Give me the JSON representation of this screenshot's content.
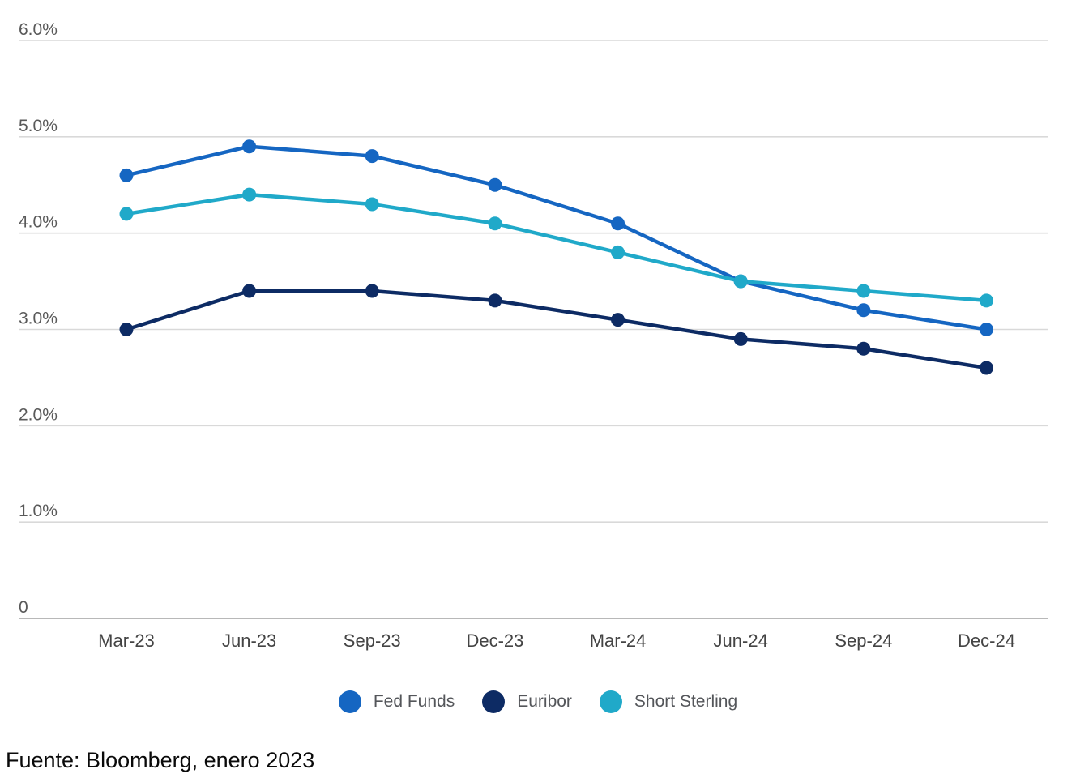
{
  "chart_data": {
    "type": "line",
    "title": "",
    "categories": [
      "Mar-23",
      "Jun-23",
      "Sep-23",
      "Dec-23",
      "Mar-24",
      "Jun-24",
      "Sep-24",
      "Dec-24"
    ],
    "series": [
      {
        "name": "Fed Funds",
        "color": "#1566C2",
        "values": [
          4.6,
          4.9,
          4.8,
          4.5,
          4.1,
          3.5,
          3.2,
          3.0
        ]
      },
      {
        "name": "Euribor",
        "color": "#0D2B64",
        "values": [
          3.0,
          3.4,
          3.4,
          3.3,
          3.1,
          2.9,
          2.8,
          2.6
        ]
      },
      {
        "name": "Short Sterling",
        "color": "#20A9C9",
        "values": [
          4.2,
          4.4,
          4.3,
          4.1,
          3.8,
          3.5,
          3.4,
          3.3
        ]
      }
    ],
    "xlabel": "",
    "ylabel": "",
    "y_axis": {
      "min": 0,
      "max": 6,
      "step": 1,
      "tick_labels": [
        "0",
        "1.0%",
        "2.0%",
        "3.0%",
        "4.0%",
        "5.0%",
        "6.0%"
      ]
    },
    "grid": true,
    "legend_position": "bottom"
  },
  "source_text": "Fuente: Bloomberg, enero 2023",
  "colors": {
    "background": "#FFFFFF",
    "gridline": "#D9D9D9",
    "axis_line": "#B8B8B8",
    "y_tick_label": "#595959",
    "x_tick_label": "#444444",
    "legend_text": "#54565A"
  }
}
